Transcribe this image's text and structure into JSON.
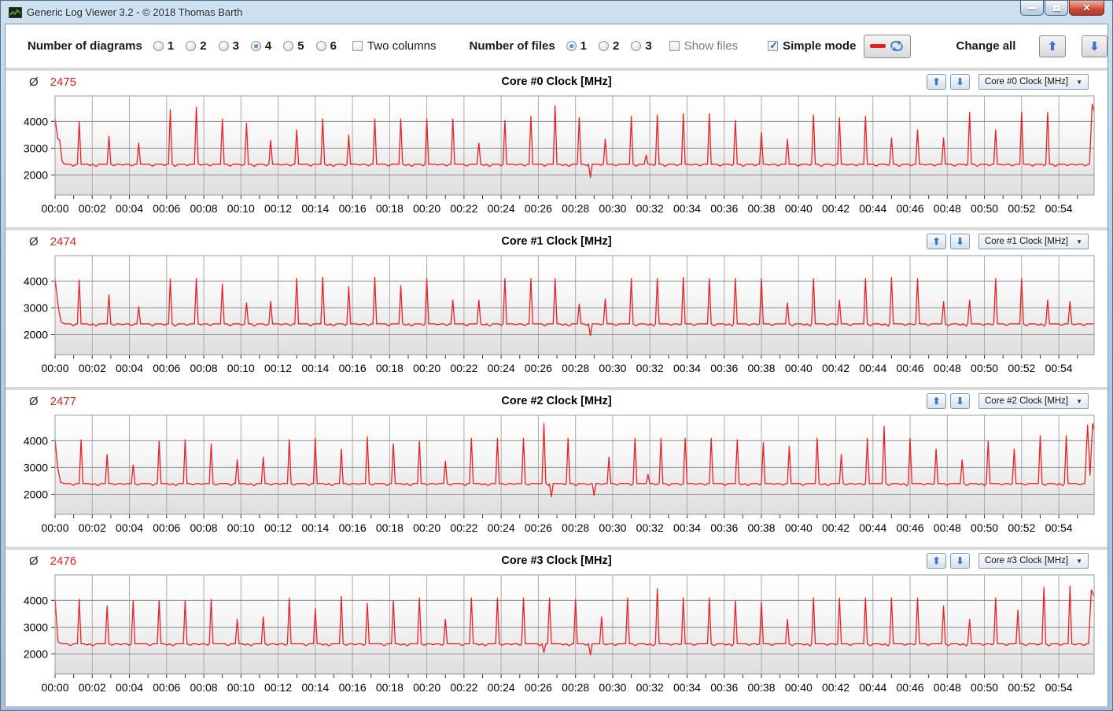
{
  "window": {
    "title": "Generic Log Viewer 3.2 - © 2018 Thomas Barth",
    "controls": {
      "minimize_icon": "dash",
      "maximize_icon": "square",
      "close_icon": "✕"
    }
  },
  "toolbar": {
    "diagrams": {
      "label": "Number of diagrams",
      "options": [
        "1",
        "2",
        "3",
        "4",
        "5",
        "6"
      ],
      "selected": "4"
    },
    "two_columns": {
      "label": "Two columns",
      "checked": false
    },
    "files": {
      "label": "Number of files",
      "options": [
        "1",
        "2",
        "3"
      ],
      "selected": "1"
    },
    "show_files": {
      "label": "Show files",
      "checked": false
    },
    "simple_mode": {
      "label": "Simple mode",
      "checked": true
    },
    "line_style_button": {
      "icons": [
        "red-line-icon",
        "refresh-icon"
      ]
    },
    "change_all": {
      "label": "Change all",
      "up_icon": "⬆",
      "down_icon": "⬇"
    }
  },
  "axes_shared": {
    "yticks": [
      2000,
      3000,
      4000
    ],
    "ylim": [
      1250,
      4950
    ],
    "xmax_minutes": 55.9,
    "x_tick_labels": [
      "00:00",
      "00:02",
      "00:04",
      "00:06",
      "00:08",
      "00:10",
      "00:12",
      "00:14",
      "00:16",
      "00:18",
      "00:20",
      "00:22",
      "00:24",
      "00:26",
      "00:28",
      "00:30",
      "00:32",
      "00:34",
      "00:36",
      "00:38",
      "00:40",
      "00:42",
      "00:44",
      "00:46",
      "00:48",
      "00:50",
      "00:52",
      "00:54"
    ],
    "colors": {
      "line": "#ed2024",
      "grid_h": "#8f8f8f",
      "grid_v": "#aaaaaa",
      "plot_border": "#9a9a9a",
      "avg_value": "#e8201d"
    }
  },
  "chart_data": [
    {
      "type": "line",
      "title": "Core #0 Clock [MHz]",
      "average": "2475",
      "selected_option": "Core #0 Clock [MHz]",
      "baseline": 2400,
      "start_points": [
        [
          0,
          4100
        ],
        [
          0.15,
          3350
        ],
        [
          0.25,
          3300
        ],
        [
          0.38,
          2520
        ],
        [
          0.5,
          2400
        ]
      ],
      "spikes": [
        [
          1.3,
          4000
        ],
        [
          2.9,
          3450
        ],
        [
          4.5,
          3200
        ],
        [
          6.2,
          4450
        ],
        [
          7.6,
          4550
        ],
        [
          9.0,
          4100
        ],
        [
          10.3,
          3950
        ],
        [
          11.6,
          3300
        ],
        [
          13.0,
          3700
        ],
        [
          14.4,
          4100
        ],
        [
          15.8,
          3500
        ],
        [
          17.2,
          4100
        ],
        [
          18.6,
          4100
        ],
        [
          20.0,
          4100
        ],
        [
          21.4,
          4100
        ],
        [
          22.8,
          3200
        ],
        [
          24.2,
          4050
        ],
        [
          25.6,
          4200
        ],
        [
          26.9,
          4600
        ],
        [
          28.2,
          4150
        ],
        [
          29.6,
          3350
        ],
        [
          31.0,
          4200
        ],
        [
          31.8,
          2750
        ],
        [
          32.4,
          4250
        ],
        [
          33.8,
          4300
        ],
        [
          35.2,
          4300
        ],
        [
          36.6,
          4050
        ],
        [
          38.0,
          3600
        ],
        [
          39.4,
          3350
        ],
        [
          40.8,
          4250
        ],
        [
          42.2,
          4150
        ],
        [
          43.6,
          4200
        ],
        [
          45.0,
          3400
        ],
        [
          46.4,
          3700
        ],
        [
          47.8,
          3400
        ],
        [
          49.2,
          4350
        ],
        [
          50.6,
          3700
        ],
        [
          52.0,
          4350
        ],
        [
          53.4,
          4350
        ]
      ],
      "dips": [
        [
          28.8,
          1900
        ]
      ],
      "end_points": [
        [
          55.65,
          2400
        ],
        [
          55.8,
          4650
        ],
        [
          55.9,
          4350
        ]
      ]
    },
    {
      "type": "line",
      "title": "Core #1 Clock [MHz]",
      "average": "2474",
      "selected_option": "Core #1 Clock [MHz]",
      "baseline": 2400,
      "start_points": [
        [
          0,
          4080
        ],
        [
          0.18,
          3000
        ],
        [
          0.32,
          2480
        ],
        [
          0.5,
          2400
        ]
      ],
      "spikes": [
        [
          1.3,
          4050
        ],
        [
          2.9,
          3500
        ],
        [
          4.5,
          3050
        ],
        [
          6.2,
          4100
        ],
        [
          7.6,
          4100
        ],
        [
          9.0,
          3900
        ],
        [
          10.3,
          3200
        ],
        [
          11.6,
          3250
        ],
        [
          13.0,
          4100
        ],
        [
          14.4,
          4150
        ],
        [
          15.8,
          3800
        ],
        [
          17.2,
          4150
        ],
        [
          18.6,
          3850
        ],
        [
          20.0,
          4100
        ],
        [
          21.4,
          3300
        ],
        [
          22.8,
          3300
        ],
        [
          24.2,
          4100
        ],
        [
          25.6,
          4100
        ],
        [
          26.9,
          4100
        ],
        [
          28.2,
          3150
        ],
        [
          29.6,
          3350
        ],
        [
          31.0,
          4100
        ],
        [
          32.4,
          4100
        ],
        [
          33.8,
          4150
        ],
        [
          35.2,
          4100
        ],
        [
          36.6,
          4100
        ],
        [
          38.0,
          4100
        ],
        [
          39.4,
          3200
        ],
        [
          40.8,
          4100
        ],
        [
          42.2,
          3300
        ],
        [
          43.6,
          4100
        ],
        [
          45.0,
          4150
        ],
        [
          46.4,
          4100
        ],
        [
          47.8,
          3250
        ],
        [
          49.2,
          3300
        ],
        [
          50.6,
          4100
        ],
        [
          52.0,
          4100
        ],
        [
          53.4,
          3300
        ],
        [
          54.6,
          3250
        ]
      ],
      "dips": [
        [
          28.8,
          1950
        ]
      ],
      "end_points": []
    },
    {
      "type": "line",
      "title": "Core #2 Clock [MHz]",
      "average": "2477",
      "selected_option": "Core #2 Clock [MHz]",
      "baseline": 2400,
      "start_points": [
        [
          0,
          4050
        ],
        [
          0.14,
          3000
        ],
        [
          0.3,
          2450
        ],
        [
          0.5,
          2400
        ]
      ],
      "spikes": [
        [
          1.4,
          4050
        ],
        [
          2.8,
          3500
        ],
        [
          4.2,
          3100
        ],
        [
          5.6,
          4000
        ],
        [
          7.0,
          4050
        ],
        [
          8.4,
          3900
        ],
        [
          9.8,
          3300
        ],
        [
          11.2,
          3400
        ],
        [
          12.6,
          4050
        ],
        [
          14.0,
          4100
        ],
        [
          15.4,
          3700
        ],
        [
          16.8,
          4150
        ],
        [
          18.2,
          3900
        ],
        [
          19.6,
          4000
        ],
        [
          21.0,
          3250
        ],
        [
          22.4,
          4100
        ],
        [
          23.8,
          4100
        ],
        [
          25.2,
          4100
        ],
        [
          26.3,
          4650
        ],
        [
          27.6,
          4100
        ],
        [
          29.8,
          3400
        ],
        [
          31.2,
          4100
        ],
        [
          31.9,
          2750
        ],
        [
          32.6,
          4100
        ],
        [
          33.9,
          4100
        ],
        [
          35.3,
          4100
        ],
        [
          36.7,
          4050
        ],
        [
          38.1,
          3950
        ],
        [
          39.5,
          3800
        ],
        [
          41.0,
          4100
        ],
        [
          42.3,
          3500
        ],
        [
          43.7,
          4100
        ],
        [
          44.6,
          4550
        ],
        [
          46.0,
          4100
        ],
        [
          47.4,
          3700
        ],
        [
          48.8,
          3300
        ],
        [
          50.2,
          4000
        ],
        [
          51.6,
          3700
        ],
        [
          53.0,
          4200
        ],
        [
          54.4,
          4200
        ]
      ],
      "dips": [
        [
          26.7,
          1900
        ],
        [
          29.0,
          1950
        ]
      ],
      "end_points": [
        [
          55.4,
          2400
        ],
        [
          55.55,
          4600
        ],
        [
          55.68,
          2700
        ],
        [
          55.82,
          4650
        ],
        [
          55.9,
          4400
        ]
      ]
    },
    {
      "type": "line",
      "title": "Core #3 Clock [MHz]",
      "average": "2476",
      "selected_option": "Core #3 Clock [MHz]",
      "baseline": 2380,
      "start_points": [
        [
          0,
          4050
        ],
        [
          0.16,
          2450
        ],
        [
          0.35,
          2380
        ]
      ],
      "spikes": [
        [
          1.3,
          4050
        ],
        [
          2.8,
          3800
        ],
        [
          4.2,
          4000
        ],
        [
          5.6,
          4000
        ],
        [
          7.0,
          4000
        ],
        [
          8.4,
          4050
        ],
        [
          9.8,
          3300
        ],
        [
          11.2,
          3400
        ],
        [
          12.6,
          4100
        ],
        [
          14.0,
          3700
        ],
        [
          15.4,
          4150
        ],
        [
          16.8,
          3900
        ],
        [
          18.2,
          4000
        ],
        [
          19.6,
          4100
        ],
        [
          21.0,
          3300
        ],
        [
          22.4,
          4100
        ],
        [
          23.8,
          4100
        ],
        [
          25.2,
          4100
        ],
        [
          26.6,
          4100
        ],
        [
          28.0,
          4050
        ],
        [
          29.4,
          3400
        ],
        [
          30.8,
          4100
        ],
        [
          32.4,
          4450
        ],
        [
          33.8,
          4100
        ],
        [
          35.2,
          4100
        ],
        [
          36.6,
          4000
        ],
        [
          38.0,
          3950
        ],
        [
          39.4,
          3300
        ],
        [
          40.8,
          4100
        ],
        [
          42.2,
          4100
        ],
        [
          43.6,
          4100
        ],
        [
          45.0,
          4100
        ],
        [
          46.4,
          4100
        ],
        [
          47.8,
          3800
        ],
        [
          49.2,
          3300
        ],
        [
          50.6,
          4100
        ],
        [
          51.8,
          3650
        ],
        [
          53.2,
          4500
        ],
        [
          54.6,
          4550
        ]
      ],
      "dips": [
        [
          26.3,
          2050
        ],
        [
          28.8,
          1950
        ]
      ],
      "end_points": [
        [
          55.6,
          2380
        ],
        [
          55.75,
          4400
        ],
        [
          55.9,
          4150
        ]
      ]
    }
  ]
}
